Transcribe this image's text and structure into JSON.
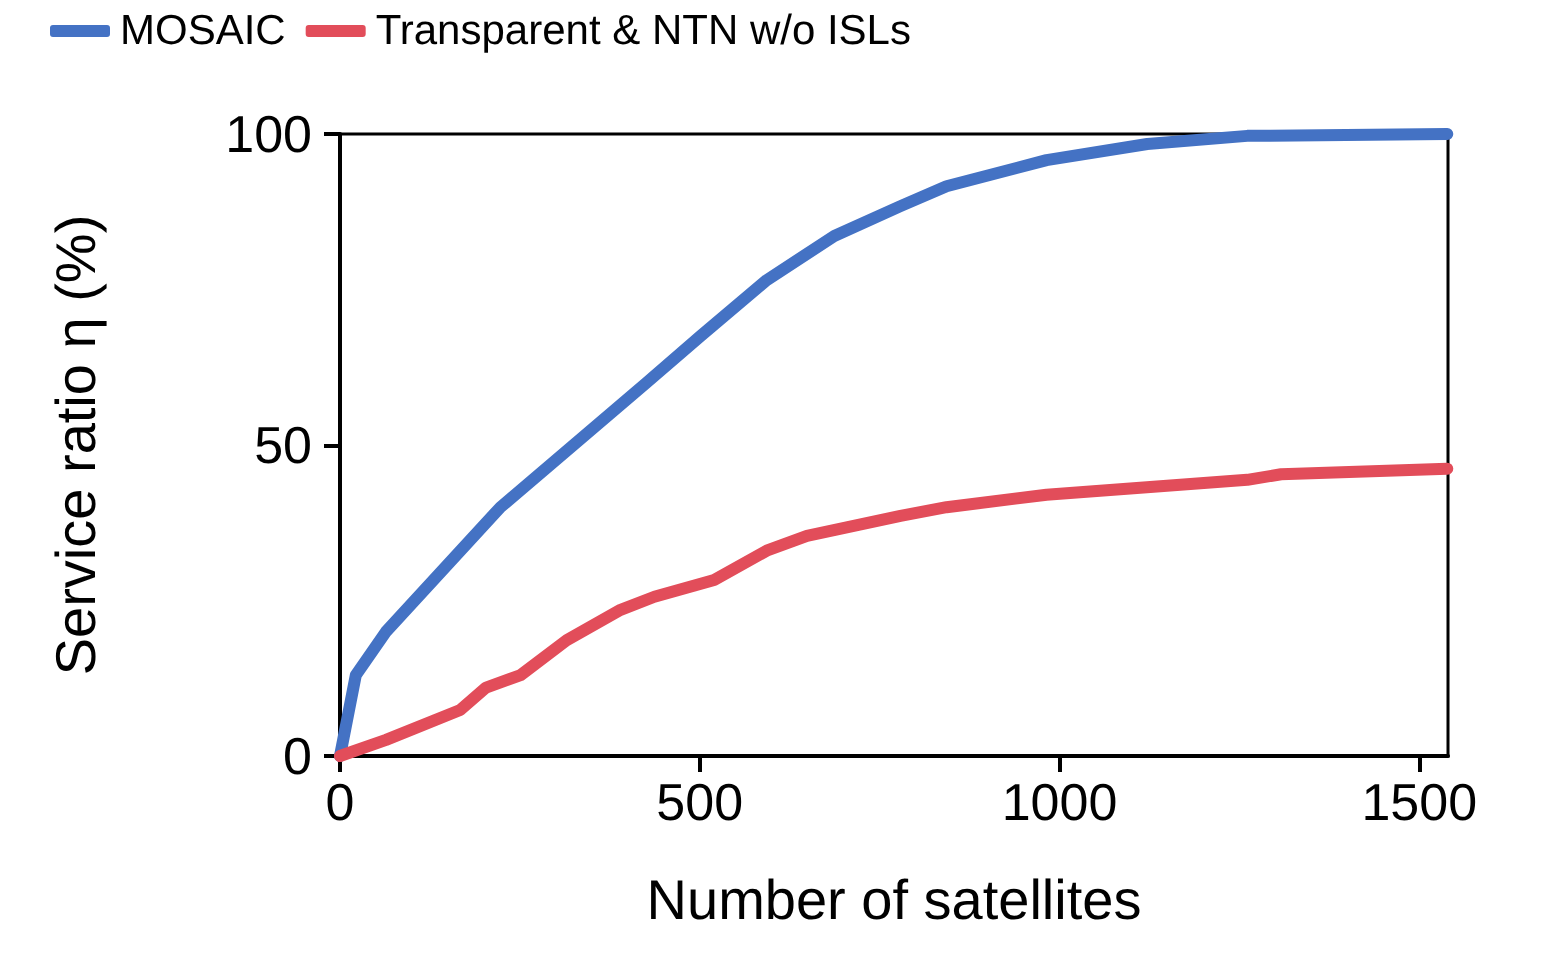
{
  "chart_data": {
    "type": "line",
    "xlabel": "Number of satellites",
    "ylabel": "Service ratio η (%)",
    "xlim": [
      0,
      1540
    ],
    "xticks": [
      0,
      500,
      1000,
      1500
    ],
    "ylim": [
      0,
      100
    ],
    "yticks": [
      0,
      50,
      100
    ],
    "grid": false,
    "legend": "top",
    "marker": "none",
    "line_style": "solid",
    "series": [
      {
        "name": "MOSAIC",
        "color": "#4472c4",
        "x": [
          0,
          22,
          64,
          223,
          426,
          501,
          593,
          687,
          779,
          843,
          982,
          1122,
          1261,
          1539
        ],
        "values": [
          0,
          13,
          20,
          40,
          60,
          67.5,
          76.5,
          83.6,
          88.4,
          91.6,
          95.8,
          98.4,
          99.7,
          100
        ]
      },
      {
        "name": "Transparent & NTN w/o ISLs",
        "color": "#e24d5a",
        "x": [
          0,
          64,
          167,
          203,
          251,
          315,
          390,
          437,
          520,
          593,
          649,
          779,
          843,
          982,
          1261,
          1308,
          1539
        ],
        "values": [
          0,
          2.6,
          7.4,
          11,
          13,
          18.6,
          23.5,
          25.6,
          28.3,
          33,
          35.4,
          38.6,
          40,
          42,
          44.4,
          45.3,
          46.2
        ]
      }
    ]
  }
}
